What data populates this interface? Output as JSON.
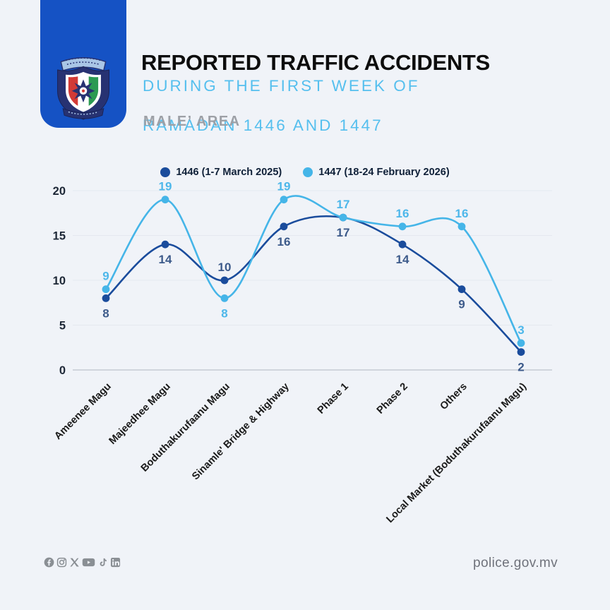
{
  "header": {
    "title": "REPORTED TRAFFIC ACCIDENTS",
    "subtitle_line1": "DURING THE FIRST WEEK OF",
    "subtitle_line2": "RAMADAN 1446 AND 1447",
    "area_label": "MALE’ AREA",
    "brand_color": "#1552c4",
    "subtitle_color": "#55bfee"
  },
  "chart_data": {
    "type": "line",
    "title": "Reported traffic accidents during the first week of Ramadan 1446 and 1447 (Male' Area)",
    "categories": [
      "Ameenee Magu",
      "Majeedhee Magu",
      "Boduthakurufaanu Magu",
      "Sinamle' Bridge & Highway",
      "Phase 1",
      "Phase 2",
      "Others",
      "Local Market (Boduthakurufaanu Magu)"
    ],
    "series": [
      {
        "name": "1446 (1-7 March 2025)",
        "color": "#1a4c9c",
        "label_color": "#3c5a8a",
        "values": [
          8,
          14,
          10,
          16,
          17,
          14,
          9,
          2
        ]
      },
      {
        "name": "1447 (18-24 February 2026)",
        "color": "#45b5e8",
        "label_color": "#4db7ea",
        "values": [
          9,
          19,
          8,
          19,
          17,
          16,
          16,
          3
        ]
      }
    ],
    "ylim": [
      0,
      20
    ],
    "yticks": [
      0,
      5,
      10,
      15,
      20
    ],
    "grid": true,
    "legend_position": "top",
    "point_labels": true,
    "xlabel": "",
    "ylabel": ""
  },
  "footer": {
    "website": "police.gov.mv",
    "social_icons": [
      "facebook-icon",
      "instagram-icon",
      "x-icon",
      "youtube-icon",
      "tiktok-icon",
      "linkedin-icon"
    ]
  }
}
